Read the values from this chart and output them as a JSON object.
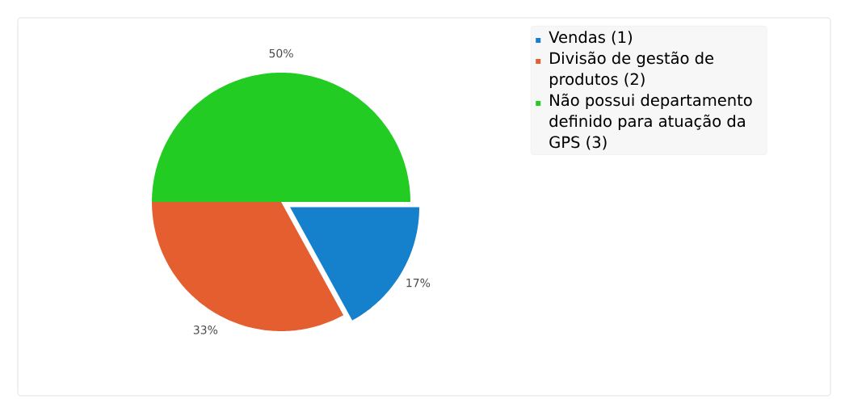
{
  "chart_data": {
    "type": "pie",
    "categories": [
      "Vendas (1)",
      "Divisão de gestão de produtos (2)",
      "Não possui departamento definido para atuação da GPS (3)"
    ],
    "values": [
      17,
      33,
      50
    ],
    "value_labels": [
      "17%",
      "33%",
      "50%"
    ],
    "colors": [
      "#1580cc",
      "#e45e30",
      "#22cc22"
    ],
    "legend": "top right"
  }
}
